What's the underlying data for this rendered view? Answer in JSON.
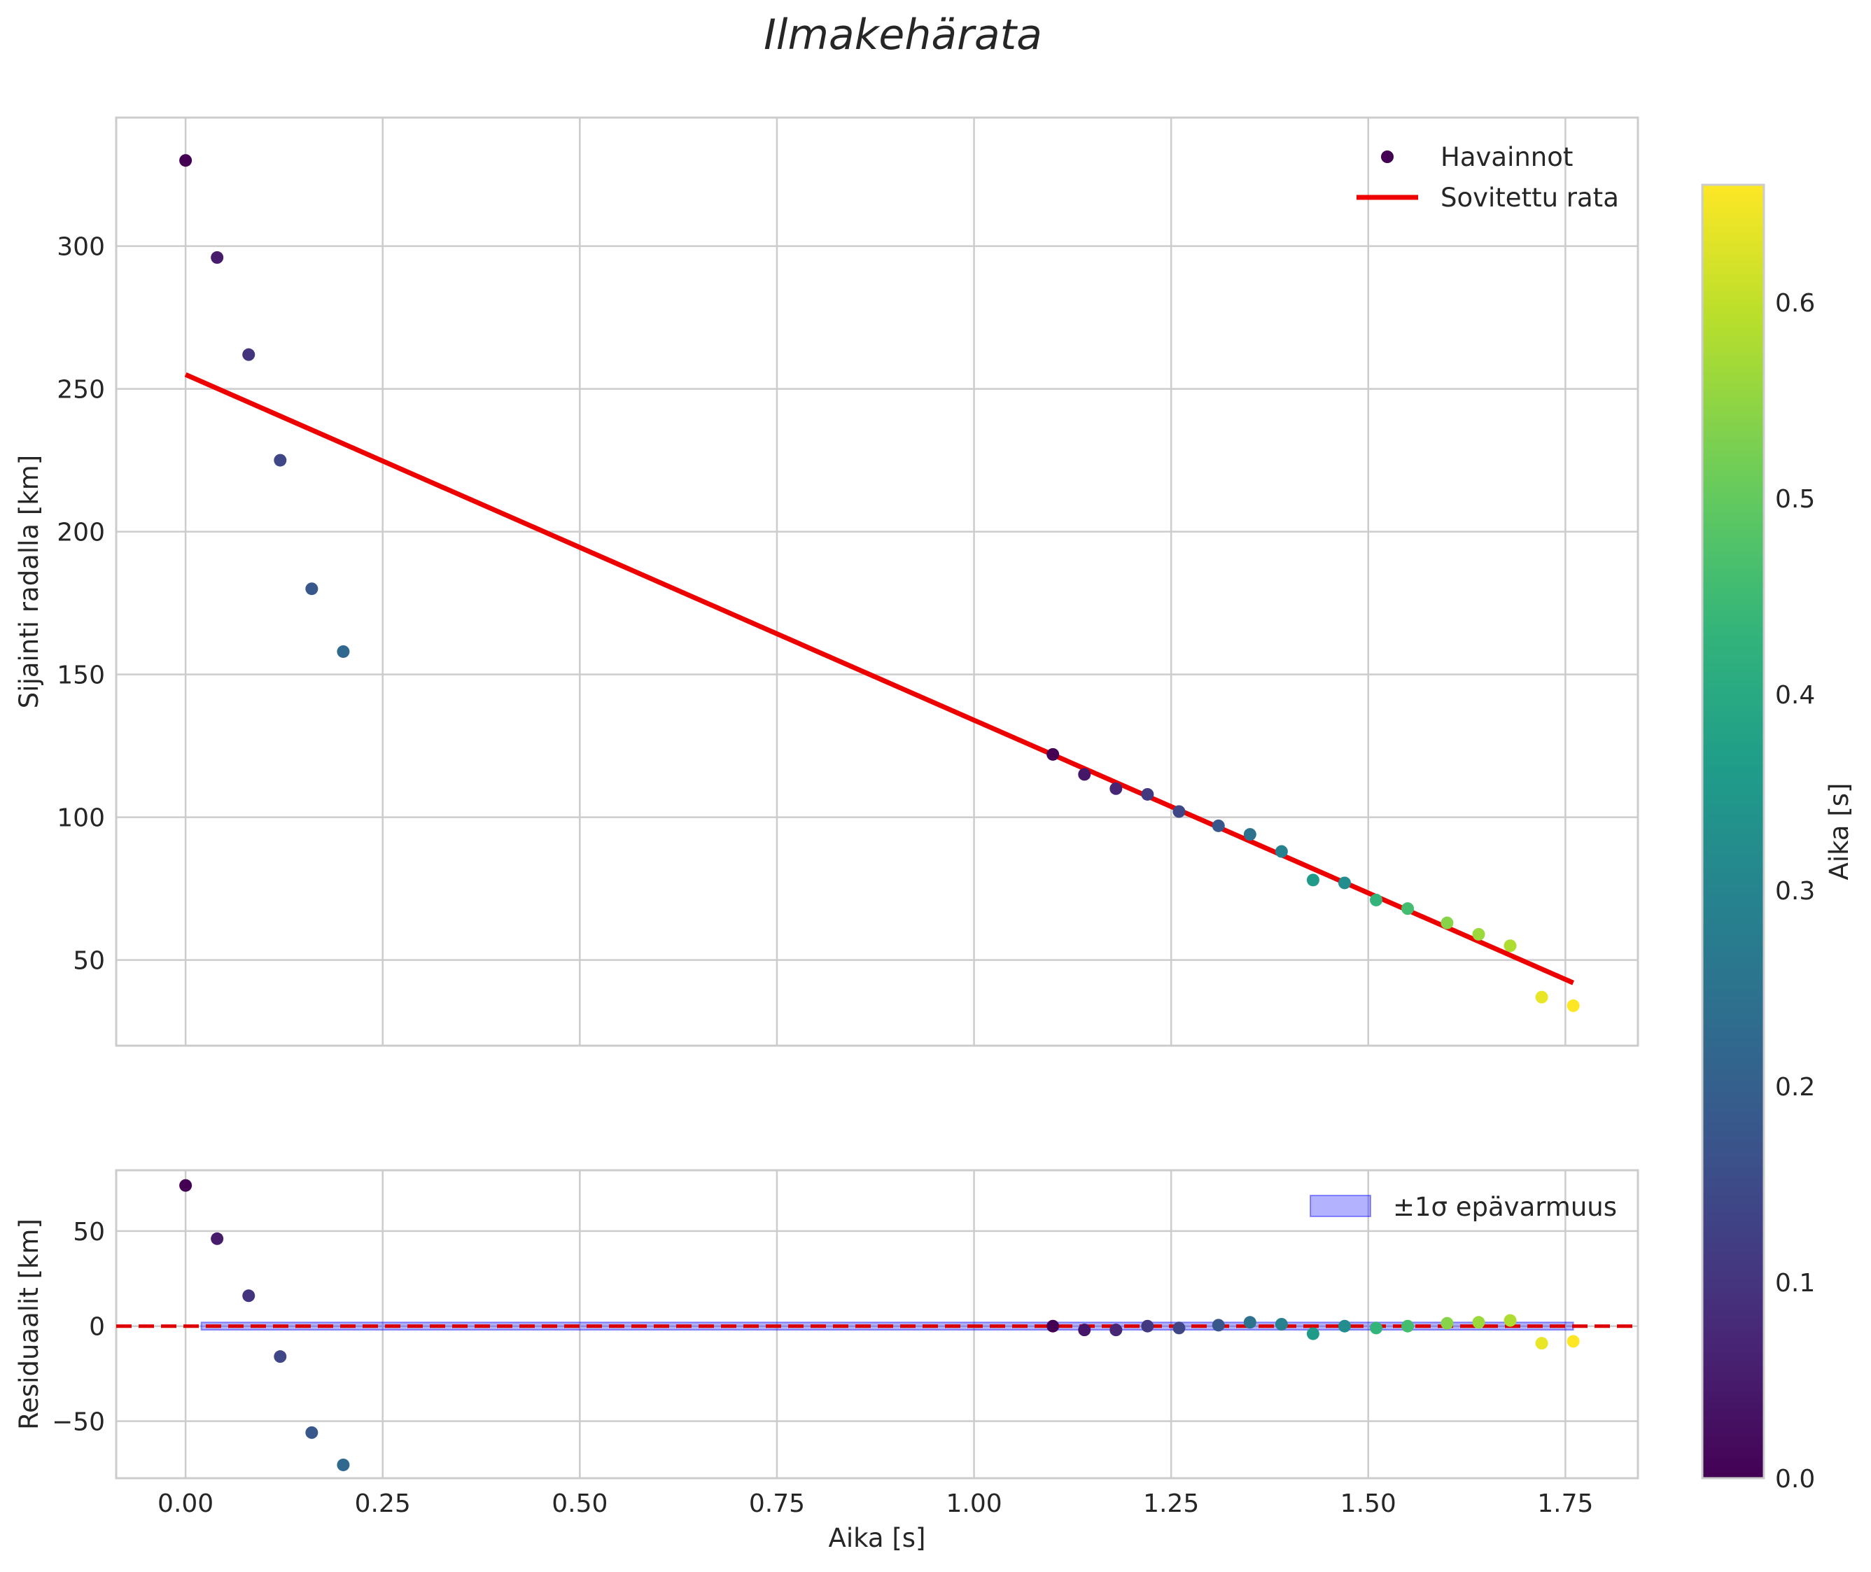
{
  "chart_data": [
    {
      "type": "scatter",
      "panel": "main",
      "title": "Ilmakehärata",
      "xlabel": "",
      "ylabel": "Sijainti radalla [km]",
      "xlim": [
        -0.088,
        1.842
      ],
      "ylim": [
        20,
        345
      ],
      "xticks": [
        "0.00",
        "0.25",
        "0.50",
        "0.75",
        "1.00",
        "1.25",
        "1.50",
        "1.75"
      ],
      "xtick_values": [
        0,
        0.25,
        0.5,
        0.75,
        1.0,
        1.25,
        1.5,
        1.75
      ],
      "yticks": [
        "50",
        "100",
        "150",
        "200",
        "250",
        "300"
      ],
      "ytick_values": [
        50,
        100,
        150,
        200,
        250,
        300
      ],
      "grid": true,
      "legend": {
        "position": "upper-right",
        "entries": [
          "Havainnot",
          "Sovitettu rata"
        ]
      },
      "series": [
        {
          "name": "Havainnot",
          "kind": "scatter",
          "colormap": "viridis",
          "x": [
            0.0,
            0.04,
            0.08,
            0.12,
            0.16,
            0.2,
            1.1,
            1.14,
            1.18,
            1.22,
            1.26,
            1.31,
            1.35,
            1.39,
            1.43,
            1.47,
            1.51,
            1.55,
            1.6,
            1.64,
            1.68,
            1.72,
            1.76
          ],
          "y": [
            330,
            296,
            262,
            225,
            180,
            158,
            122,
            115,
            110,
            108,
            102,
            97,
            94,
            88,
            78,
            77,
            71,
            68,
            63,
            59,
            55,
            37,
            34
          ],
          "c": [
            0.0,
            0.05,
            0.1,
            0.14,
            0.18,
            0.22,
            0.0,
            0.04,
            0.07,
            0.11,
            0.14,
            0.18,
            0.25,
            0.29,
            0.36,
            0.32,
            0.43,
            0.46,
            0.54,
            0.56,
            0.58,
            0.64,
            0.66
          ]
        },
        {
          "name": "Sovitettu rata",
          "kind": "line",
          "color": "#ee0000",
          "x": [
            0.0,
            1.76
          ],
          "y": [
            255,
            42
          ]
        }
      ]
    },
    {
      "type": "scatter",
      "panel": "residuals",
      "xlabel": "Aika [s]",
      "ylabel": "Residuaalit [km]",
      "xlim": [
        -0.088,
        1.842
      ],
      "ylim": [
        -80,
        82
      ],
      "xticks": [
        "0.00",
        "0.25",
        "0.50",
        "0.75",
        "1.00",
        "1.25",
        "1.50",
        "1.75"
      ],
      "xtick_values": [
        0,
        0.25,
        0.5,
        0.75,
        1.0,
        1.25,
        1.5,
        1.75
      ],
      "yticks": [
        "−50",
        "0",
        "50"
      ],
      "ytick_values": [
        -50,
        0,
        50
      ],
      "grid": true,
      "legend": {
        "position": "upper-right",
        "entries": [
          "±1σ epävarmuus"
        ]
      },
      "zero_line": {
        "y": 0,
        "color": "#dd0000",
        "style": "dashed"
      },
      "band": {
        "name": "±1σ epävarmuus",
        "x": [
          0.02,
          1.76
        ],
        "y_low": -2,
        "y_high": 2,
        "color": "#0000ff",
        "alpha": 0.3
      },
      "series": [
        {
          "name": "Residuaalit",
          "kind": "scatter",
          "colormap": "viridis",
          "x": [
            0.0,
            0.04,
            0.08,
            0.12,
            0.16,
            0.2,
            1.1,
            1.14,
            1.18,
            1.22,
            1.26,
            1.31,
            1.35,
            1.39,
            1.43,
            1.47,
            1.51,
            1.55,
            1.6,
            1.64,
            1.68,
            1.72,
            1.76
          ],
          "y": [
            74,
            46,
            16,
            -16,
            -56,
            -73,
            0,
            -2,
            -2,
            0,
            -1,
            0.5,
            2,
            1,
            -4,
            0,
            -1,
            0,
            1.5,
            2,
            3,
            -9,
            -8
          ],
          "c": [
            0.0,
            0.05,
            0.1,
            0.14,
            0.18,
            0.22,
            0.0,
            0.04,
            0.07,
            0.11,
            0.14,
            0.18,
            0.25,
            0.29,
            0.36,
            0.32,
            0.43,
            0.46,
            0.54,
            0.56,
            0.58,
            0.64,
            0.66
          ]
        }
      ]
    },
    {
      "type": "colorbar",
      "label": "Aika [s]",
      "colormap": "viridis",
      "range": [
        0.0,
        0.66
      ],
      "ticks": [
        "0.0",
        "0.1",
        "0.2",
        "0.3",
        "0.4",
        "0.5",
        "0.6"
      ],
      "tick_values": [
        0.0,
        0.1,
        0.2,
        0.3,
        0.4,
        0.5,
        0.6
      ]
    }
  ]
}
